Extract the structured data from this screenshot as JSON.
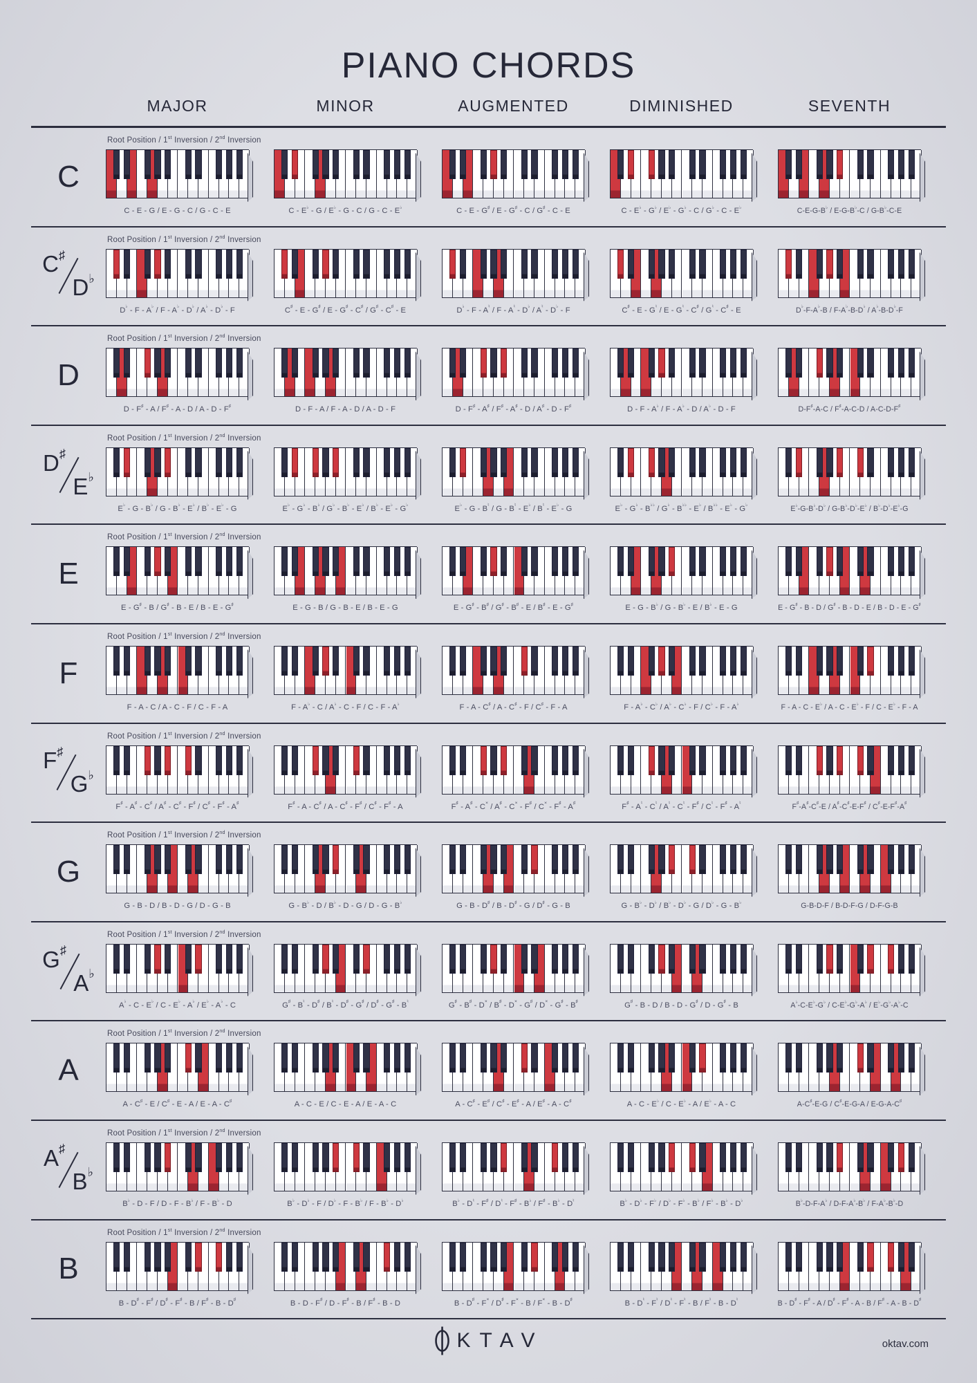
{
  "title": "PIANO CHORDS",
  "columns": [
    {
      "label": "MAJOR",
      "intervals": [
        0,
        4,
        7
      ]
    },
    {
      "label": "MINOR",
      "intervals": [
        0,
        3,
        7
      ]
    },
    {
      "label": "AUGMENTED",
      "intervals": [
        0,
        4,
        8
      ]
    },
    {
      "label": "DIMINISHED",
      "intervals": [
        0,
        3,
        6
      ]
    },
    {
      "label": "SEVENTH",
      "intervals": [
        0,
        4,
        7,
        10
      ]
    }
  ],
  "caption": "Root Position / 1st Inversion / 2nd Inversion",
  "keyboard": {
    "octaves": 2,
    "start_note": "C",
    "white_keys": 14,
    "black_keys": 10
  },
  "colors": {
    "background": "#dadbe1",
    "ink": "#2b2d3d",
    "black_key": "#303247",
    "highlight_red": "#ce3940",
    "highlight_red_dark": "#9c2430",
    "label_gray": "#4b4d60"
  },
  "rows": [
    {
      "root": "C",
      "semitone": 0,
      "cells": [
        "C - E - G / E - G - C / G - C - E",
        "C - E♭ - G / E♭ - G - C / G - C - E♭",
        "C - E - G♯ / E - G♯ - C / G♯ - C - E",
        "C - E♭ - G♭ / E♭ - G♭ - C / G♭ - C - E♭",
        "C-E-G-B♭ / E-G-B♭-C / G-B♭-C-E"
      ]
    },
    {
      "root": "C♯/D♭",
      "semitone": 1,
      "cells": [
        "D♭ - F - A♭ / F - A♭ - D♭ / A♭ - D♭ - F",
        "C♯ - E - G♯ / E - G♯ - C♯ / G♯ - C♯ - E",
        "D♭ - F - A♮ / F - A♮ - D♭ / A♮ - D♭ - F",
        "C♯ - E - G♮ / E - G♮ - C♯ / G♮ - C♯ - E",
        "D♭-F-A♭-B / F-A♭-B-D♭ / A♭-B-D♭-F"
      ]
    },
    {
      "root": "D",
      "semitone": 2,
      "cells": [
        "D - F♯ - A / F♯ - A - D / A - D - F♯",
        "D - F - A / F - A - D / A - D - F",
        "D - F♯ - A♯ / F♯ - A♯ - D / A♯ - D - F♯",
        "D - F - A♭ / F - A♭ - D / A♭ - D - F",
        "D-F♯-A-C / F♯-A-C-D / A-C-D-F♯"
      ]
    },
    {
      "root": "D♯/E♭",
      "semitone": 3,
      "cells": [
        "E♭ - G - B♭ / G - B♭ - E♭ / B♭ - E♭ - G",
        "E♭ - G♭ - B♭ / G♭ - B♭ - E♭ / B♭ - E♭ - G♭",
        "E♭ - G - B♮ / G - B♮ - E♭ / B♮ - E♭ - G",
        "E♭ - G♭ - B♭♭ / G♭ - B♭♭ - E♭ / B♭♭ - E♭ - G♭",
        "E♭-G-B♭-D♭ / G-B♭-D♭-E♭ / B♭-D♭-E♭-G"
      ]
    },
    {
      "root": "E",
      "semitone": 4,
      "cells": [
        "E - G♯ - B / G♯ - B - E / B - E - G♯",
        "E - G - B / G - B - E / B - E - G",
        "E - G♯ - B♯ / G♯ - B♯ - E / B♯ - E - G♯",
        "E - G - B♭ / G - B♭ - E / B♭ - E - G",
        "E - G♯ - B - D / G♯ - B - D - E / B - D - E - G♯"
      ]
    },
    {
      "root": "F",
      "semitone": 5,
      "cells": [
        "F - A - C / A - C - F / C - F - A",
        "F - A♭ - C / A♭ - C - F / C - F - A♭",
        "F - A - C♯ / A - C♯ - F / C♯ - F - A",
        "F - A♭ - C♭ / A♭ - C♭ - F / C♭ - F - A♭",
        "F - A - C - E♭ / A - C - E♭ - F / C - E♭ - F - A"
      ]
    },
    {
      "root": "F♯/G♭",
      "semitone": 6,
      "cells": [
        "F♯ - A♯ - C♯ / A♯ - C♯ - F♯ / C♯ - F♯ - A♯",
        "F♯ - A - C♯ / A - C♯ - F♯ / C♯ - F♯ - A",
        "F♯ - A♯ - C× / A♯ - C× - F♯ / C× - F♯ - A♯",
        "F♯ - A♮ - C♮ / A♮ - C♮ - F♯ / C♮ - F♯ - A♮",
        "F♯-A♯-C♯-E / A♯-C♯-E-F♯ / C♯-E-F♯-A♯"
      ]
    },
    {
      "root": "G",
      "semitone": 7,
      "cells": [
        "G - B - D / B - D - G / D - G - B",
        "G - B♭ - D / B♭ - D - G / D - G - B♭",
        "G - B - D♯ / B - D♯ - G / D♯ - G - B",
        "G - B♭ - D♭ / B♭ - D♭ - G / D♭ - G - B♭",
        "G-B-D-F / B-D-F-G / D-F-G-B"
      ]
    },
    {
      "root": "G♯/A♭",
      "semitone": 8,
      "cells": [
        "A♭ - C - E♭ / C - E♭ - A♭ / E♭ - A♭ - C",
        "G♯ - B♮ - D♯ / B♮ - D♯ - G♯ / D♯ - G♯ - B♮",
        "G♯ - B♯ - D× / B♯ - D× - G♯ / D× - G♯ - B♯",
        "G♯ - B - D / B - D - G♯ / D - G♯ - B",
        "A♭-C-E♭-G♭ / C-E♭-G♭-A♭ / E♭-G♭-A♭-C"
      ]
    },
    {
      "root": "A",
      "semitone": 9,
      "cells": [
        "A - C♯ - E / C♯ - E - A / E - A - C♯",
        "A - C - E / C - E - A / E - A - C",
        "A - C♯ - E♯ / C♯ - E♯ - A / E♯ - A - C♯",
        "A - C - E♭ / C - E♭ - A / E♭ - A - C",
        "A-C♯-E-G / C♯-E-G-A / E-G-A-C♯"
      ]
    },
    {
      "root": "A♯/B♭",
      "semitone": 10,
      "cells": [
        "B♭ - D - F / D - F - B♭ / F - B♭ - D",
        "B♭ - D♭ - F / D♭ - F - B♭ / F - B♭ - D♭",
        "B♭ - D♮ - F♯ / D♮ - F♯ - B♭ / F♯ - B♭ - D♮",
        "B♭ - D♭ - F♭ / D♭ - F♭ - B♭ / F♭ - B♭ - D♭",
        "B♭-D-F-A♭ / D-F-A♭-B♭ / F-A♭-B♭-D"
      ]
    },
    {
      "root": "B",
      "semitone": 11,
      "cells": [
        "B - D♯ - F♯ / D♯ - F♯ - B / F♯ - B - D♯",
        "B - D - F♯ / D - F♯ - B / F♯ - B - D",
        "B - D♯ - F× / D♯ - F× - B / F× - B - D♯",
        "B - D♮ - F♮ / D♮ - F♮ - B / F♮ - B - D♮",
        "B - D♯ - F♯ - A / D♯ - F♯ - A - B / F♯ - A - B - D♯"
      ]
    }
  ],
  "footer": {
    "logo": "OKTAV",
    "logo_rest": "KTAV",
    "website": "oktav.com"
  }
}
